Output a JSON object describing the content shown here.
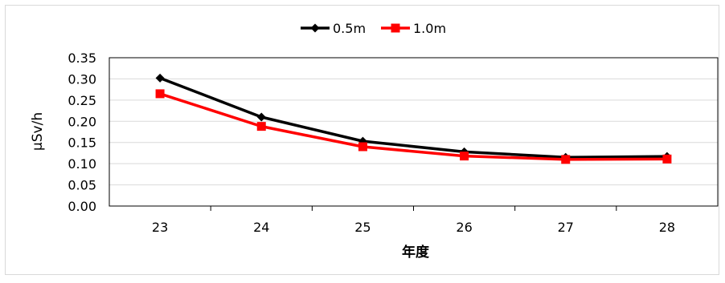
{
  "chart_data": {
    "type": "line",
    "title": "",
    "xlabel": "年度",
    "ylabel": "μSv/h",
    "categories": [
      "23",
      "24",
      "25",
      "26",
      "27",
      "28"
    ],
    "ylim": [
      0,
      0.35
    ],
    "yticks": [
      "0.00",
      "0.05",
      "0.10",
      "0.15",
      "0.20",
      "0.25",
      "0.30",
      "0.35"
    ],
    "grid": true,
    "legend_position": "top-center",
    "series": [
      {
        "name": "0.5m",
        "color": "#000000",
        "marker": "diamond",
        "values": [
          0.302,
          0.21,
          0.153,
          0.128,
          0.115,
          0.117
        ]
      },
      {
        "name": "1.0m",
        "color": "#ff0000",
        "marker": "square",
        "values": [
          0.265,
          0.188,
          0.14,
          0.118,
          0.11,
          0.111
        ]
      }
    ]
  }
}
